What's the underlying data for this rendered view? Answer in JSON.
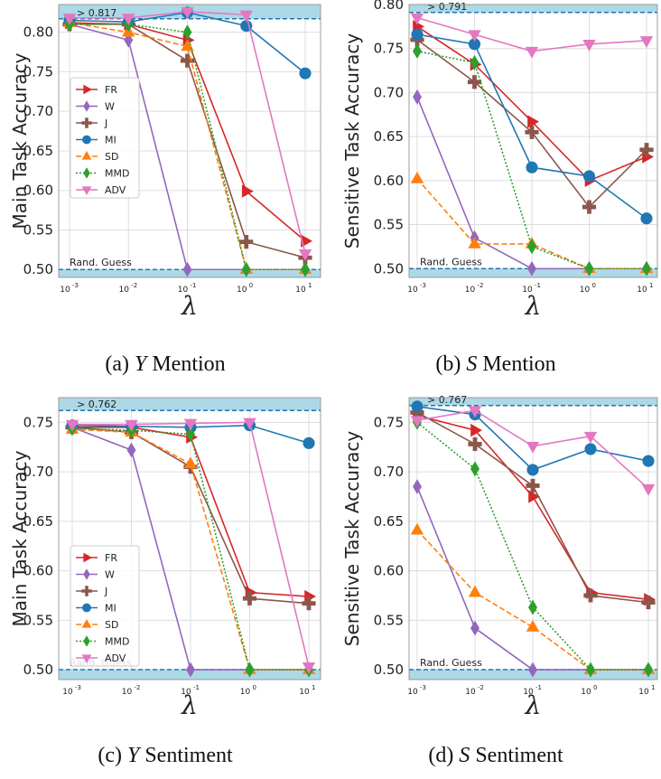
{
  "series_style": [
    {
      "name": "FR",
      "color": "#d62728",
      "marker": "tri-right",
      "dash": ""
    },
    {
      "name": "W",
      "color": "#9467bd",
      "marker": "diamond",
      "dash": ""
    },
    {
      "name": "J",
      "color": "#8c564b",
      "marker": "plus",
      "dash": ""
    },
    {
      "name": "MI",
      "color": "#1f77b4",
      "marker": "circle",
      "dash": ""
    },
    {
      "name": "SD",
      "color": "#ff7f0e",
      "marker": "tri-up",
      "dash": "6,3"
    },
    {
      "name": "MMD",
      "color": "#2ca02c",
      "marker": "diamond",
      "dash": "2,2"
    },
    {
      "name": "ADV",
      "color": "#e377c2",
      "marker": "tri-down",
      "dash": ""
    }
  ],
  "band_color": "#add8e6",
  "dashed_line_color": "#1f77b4",
  "chart_data": [
    {
      "type": "line",
      "caption_prefix": "(a) ",
      "caption_var": "Y",
      "caption_rest": " Mention",
      "ylabel": "Main Task Accuracy",
      "xlabel": "λ",
      "ylim": [
        0.49,
        0.835
      ],
      "x": [
        "10^-3",
        "10^-2",
        "10^-1",
        "10^0",
        "10^1"
      ],
      "x_ticks": [
        {
          "base": "10",
          "exp": "-3"
        },
        {
          "base": "10",
          "exp": "-2"
        },
        {
          "base": "10",
          "exp": "-1"
        },
        {
          "base": "10",
          "exp": "0"
        },
        {
          "base": "10",
          "exp": "1"
        }
      ],
      "y_ticks": [
        0.5,
        0.55,
        0.6,
        0.65,
        0.7,
        0.75,
        0.8
      ],
      "y_tick_labels": [
        "0.50",
        "0.55",
        "0.60",
        "0.65",
        "0.70",
        "0.75",
        "0.80"
      ],
      "upper_band": {
        "from": 0.817,
        "label": "> 0.817"
      },
      "lower_band": {
        "to": 0.5,
        "label": "Rand. Guess"
      },
      "legend": true,
      "series": [
        {
          "name": "FR",
          "values": [
            0.812,
            0.81,
            0.79,
            0.599,
            0.536
          ]
        },
        {
          "name": "W",
          "values": [
            0.81,
            0.79,
            0.5,
            0.5,
            0.5
          ]
        },
        {
          "name": "J",
          "values": [
            0.81,
            0.81,
            0.764,
            0.535,
            0.515
          ]
        },
        {
          "name": "MI",
          "values": [
            0.815,
            0.813,
            0.825,
            0.808,
            0.748
          ]
        },
        {
          "name": "SD",
          "values": [
            0.812,
            0.8,
            0.782,
            0.5,
            0.5
          ]
        },
        {
          "name": "MMD",
          "values": [
            0.81,
            0.81,
            0.8,
            0.5,
            0.5
          ]
        },
        {
          "name": "ADV",
          "values": [
            0.818,
            0.818,
            0.826,
            0.822,
            0.52
          ]
        }
      ]
    },
    {
      "type": "line",
      "caption_prefix": "(b) ",
      "caption_var": "S",
      "caption_rest": " Mention",
      "ylabel": "Sensitive Task Accuracy",
      "xlabel": "λ",
      "ylim": [
        0.49,
        0.8
      ],
      "x": [
        "10^-3",
        "10^-2",
        "10^-1",
        "10^0",
        "10^1"
      ],
      "x_ticks": [
        {
          "base": "10",
          "exp": "-3"
        },
        {
          "base": "10",
          "exp": "-2"
        },
        {
          "base": "10",
          "exp": "-1"
        },
        {
          "base": "10",
          "exp": "0"
        },
        {
          "base": "10",
          "exp": "1"
        }
      ],
      "y_ticks": [
        0.5,
        0.55,
        0.6,
        0.65,
        0.7,
        0.75,
        0.8
      ],
      "y_tick_labels": [
        "0.50",
        "0.55",
        "0.60",
        "0.65",
        "0.70",
        "0.75",
        "0.80"
      ],
      "upper_band": {
        "from": 0.791,
        "label": "> 0.791"
      },
      "lower_band": {
        "to": 0.5,
        "label": "Rand. Guess"
      },
      "legend": false,
      "series": [
        {
          "name": "FR",
          "values": [
            0.775,
            0.732,
            0.667,
            0.6,
            0.627
          ]
        },
        {
          "name": "W",
          "values": [
            0.695,
            0.535,
            0.5,
            0.5,
            0.5
          ]
        },
        {
          "name": "J",
          "values": [
            0.76,
            0.712,
            0.655,
            0.57,
            0.635
          ]
        },
        {
          "name": "MI",
          "values": [
            0.766,
            0.755,
            0.615,
            0.605,
            0.557
          ]
        },
        {
          "name": "SD",
          "values": [
            0.602,
            0.528,
            0.528,
            0.5,
            0.5
          ]
        },
        {
          "name": "MMD",
          "values": [
            0.747,
            0.734,
            0.525,
            0.5,
            0.5
          ]
        },
        {
          "name": "ADV",
          "values": [
            0.785,
            0.766,
            0.747,
            0.755,
            0.759
          ]
        }
      ]
    },
    {
      "type": "line",
      "caption_prefix": "(c) ",
      "caption_var": "Y",
      "caption_rest": " Sentiment",
      "ylabel": "Main Task Accuracy",
      "xlabel": "λ",
      "ylim": [
        0.49,
        0.775
      ],
      "x": [
        "10^-3",
        "10^-2",
        "10^-1",
        "10^0",
        "10^1"
      ],
      "x_ticks": [
        {
          "base": "10",
          "exp": "-3"
        },
        {
          "base": "10",
          "exp": "-2"
        },
        {
          "base": "10",
          "exp": "-1"
        },
        {
          "base": "10",
          "exp": "0"
        },
        {
          "base": "10",
          "exp": "1"
        }
      ],
      "y_ticks": [
        0.5,
        0.55,
        0.6,
        0.65,
        0.7,
        0.75
      ],
      "y_tick_labels": [
        "0.50",
        "0.55",
        "0.60",
        "0.65",
        "0.70",
        "0.75"
      ],
      "upper_band": {
        "from": 0.762,
        "label": "> 0.762"
      },
      "lower_band": {
        "to": 0.5,
        "label": "Rand. Guess"
      },
      "legend": true,
      "series": [
        {
          "name": "FR",
          "values": [
            0.745,
            0.745,
            0.735,
            0.578,
            0.574
          ]
        },
        {
          "name": "W",
          "values": [
            0.745,
            0.722,
            0.5,
            0.5,
            0.5
          ]
        },
        {
          "name": "J",
          "values": [
            0.745,
            0.74,
            0.705,
            0.572,
            0.567
          ]
        },
        {
          "name": "MI",
          "values": [
            0.747,
            0.746,
            0.745,
            0.747,
            0.729
          ]
        },
        {
          "name": "SD",
          "values": [
            0.743,
            0.74,
            0.708,
            0.5,
            0.5
          ]
        },
        {
          "name": "MMD",
          "values": [
            0.744,
            0.742,
            0.738,
            0.5,
            0.5
          ]
        },
        {
          "name": "ADV",
          "values": [
            0.748,
            0.748,
            0.749,
            0.75,
            0.503
          ]
        }
      ]
    },
    {
      "type": "line",
      "caption_prefix": "(d) ",
      "caption_var": "S",
      "caption_rest": " Sentiment",
      "ylabel": "Sensitive Task Accuracy",
      "xlabel": "λ",
      "ylim": [
        0.49,
        0.775
      ],
      "x": [
        "10^-3",
        "10^-2",
        "10^-1",
        "10^0",
        "10^1"
      ],
      "x_ticks": [
        {
          "base": "10",
          "exp": "-3"
        },
        {
          "base": "10",
          "exp": "-2"
        },
        {
          "base": "10",
          "exp": "-1"
        },
        {
          "base": "10",
          "exp": "0"
        },
        {
          "base": "10",
          "exp": "1"
        }
      ],
      "y_ticks": [
        0.5,
        0.55,
        0.6,
        0.65,
        0.7,
        0.75
      ],
      "y_tick_labels": [
        "0.50",
        "0.55",
        "0.60",
        "0.65",
        "0.70",
        "0.75"
      ],
      "upper_band": {
        "from": 0.767,
        "label": "> 0.767"
      },
      "lower_band": {
        "to": 0.5,
        "label": "Rand. Guess"
      },
      "legend": false,
      "series": [
        {
          "name": "FR",
          "values": [
            0.757,
            0.742,
            0.675,
            0.578,
            0.571
          ]
        },
        {
          "name": "W",
          "values": [
            0.685,
            0.542,
            0.5,
            0.5,
            0.5
          ]
        },
        {
          "name": "J",
          "values": [
            0.76,
            0.728,
            0.686,
            0.575,
            0.568
          ]
        },
        {
          "name": "MI",
          "values": [
            0.766,
            0.758,
            0.702,
            0.723,
            0.711
          ]
        },
        {
          "name": "SD",
          "values": [
            0.641,
            0.578,
            0.543,
            0.5,
            0.5
          ]
        },
        {
          "name": "MMD",
          "values": [
            0.75,
            0.703,
            0.563,
            0.5,
            0.5
          ]
        },
        {
          "name": "ADV",
          "values": [
            0.752,
            0.762,
            0.726,
            0.736,
            0.683
          ]
        }
      ]
    }
  ]
}
